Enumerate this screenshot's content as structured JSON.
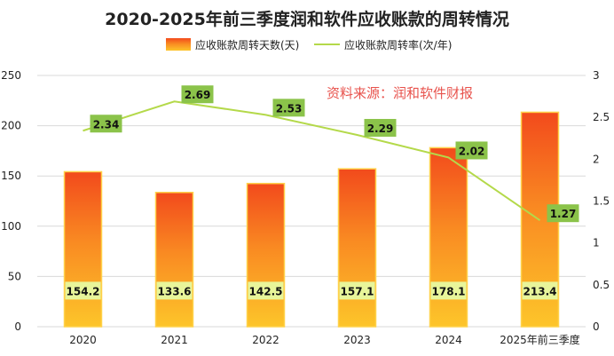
{
  "chart_data": {
    "type": "bar",
    "title": "2020-2025年前三季度润和软件应收账款的周转情况",
    "source_note": "资料来源：润和软件财报",
    "categories": [
      "2020",
      "2021",
      "2022",
      "2023",
      "2024",
      "2025年前三季度"
    ],
    "series": [
      {
        "name": "应收账款周转天数(天)",
        "type": "bar",
        "axis": "left",
        "values": [
          154.2,
          133.6,
          142.5,
          157.1,
          178.1,
          213.4
        ],
        "labels": [
          "154.2",
          "133.6",
          "142.5",
          "157.1",
          "178.1",
          "213.4"
        ]
      },
      {
        "name": "应收账款周转率(次/年)",
        "type": "line",
        "axis": "right",
        "values": [
          2.34,
          2.69,
          2.53,
          2.29,
          2.02,
          1.27
        ],
        "labels": [
          "2.34",
          "2.69",
          "2.53",
          "2.29",
          "2.02",
          "1.27"
        ]
      }
    ],
    "y_left": {
      "min": 0,
      "max": 250,
      "ticks": [
        "0",
        "50",
        "100",
        "150",
        "200",
        "250"
      ]
    },
    "y_right": {
      "min": 0,
      "max": 3,
      "ticks": [
        "0",
        "0.5",
        "1",
        "1.5",
        "2",
        "2.5",
        "3"
      ]
    },
    "colors": {
      "bar_top": "#f24a1c",
      "bar_mid": "#f98a22",
      "bar_bottom": "#fdc52a",
      "bar_edge": "#ffd24a",
      "line": "#b4d94a",
      "line_label_bg": "#8bc34a",
      "bar_label_bg": "#e8f59a",
      "source_text": "#e8534d",
      "grid": "#d9d9d9",
      "text": "#222222"
    },
    "legend_position": "top",
    "grid": true
  }
}
